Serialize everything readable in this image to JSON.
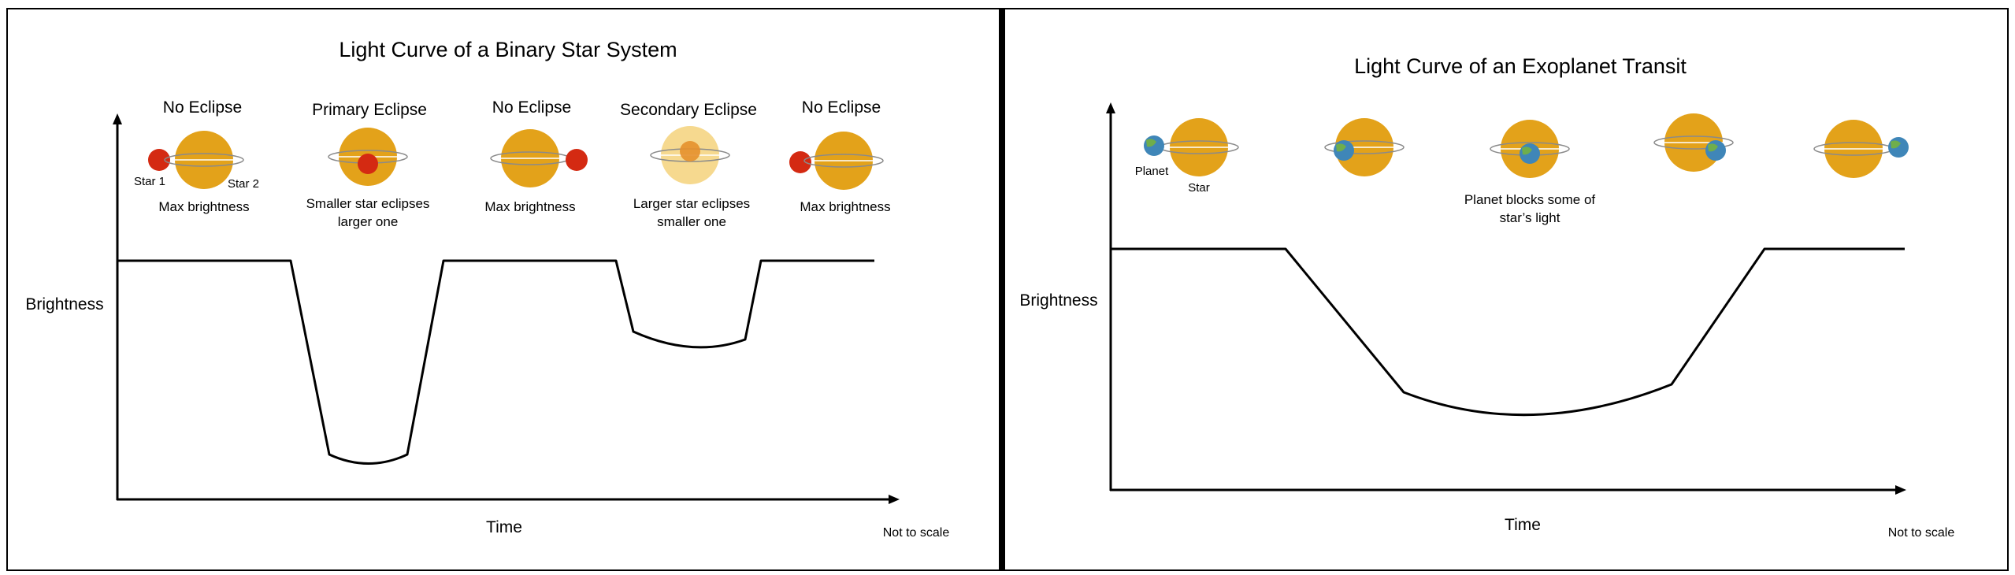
{
  "colors": {
    "star_gold": "#e3a21a",
    "star_faded": "#f6d98f",
    "small_star_red": "#d42a12",
    "planet_blue": "#3f86b8",
    "planet_green": "#6fae4c",
    "orbit_gray": "#8a8a8a",
    "curve": "#000000",
    "divider": "#000000"
  },
  "binary": {
    "title": "Light Curve of a Binary Star System",
    "ylabel": "Brightness",
    "xlabel": "Time",
    "note": "Not to scale",
    "star1_label": "Star 1",
    "star2_label": "Star 2",
    "stages": [
      {
        "heading": "No Eclipse",
        "caption1": "Max brightness",
        "caption2": ""
      },
      {
        "heading": "Primary Eclipse",
        "caption1": "Smaller star eclipses",
        "caption2": "larger one"
      },
      {
        "heading": "No Eclipse",
        "caption1": "Max brightness",
        "caption2": ""
      },
      {
        "heading": "Secondary Eclipse",
        "caption1": "Larger star eclipses",
        "caption2": "smaller one"
      },
      {
        "heading": "No Eclipse",
        "caption1": "Max brightness",
        "caption2": ""
      }
    ]
  },
  "transit": {
    "title": "Light Curve of an Exoplanet Transit",
    "ylabel": "Brightness",
    "xlabel": "Time",
    "note": "Not to scale",
    "planet_label": "Planet",
    "star_label": "Star",
    "caption1": "Planet blocks some of",
    "caption2": "star’s light"
  }
}
